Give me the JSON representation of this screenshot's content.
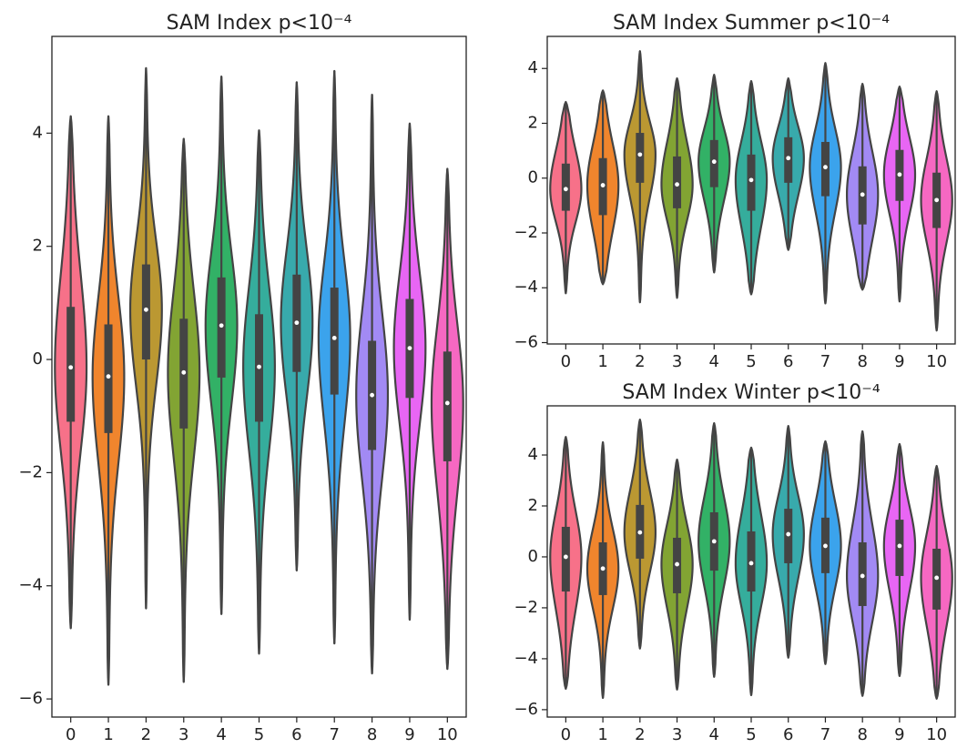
{
  "chart_data": [
    {
      "type": "violin",
      "title": "SAM Index p<10⁻⁴",
      "categories": [
        "0",
        "1",
        "2",
        "3",
        "4",
        "5",
        "6",
        "7",
        "8",
        "9",
        "10"
      ],
      "colors": [
        "#f77189",
        "#f0852d",
        "#bb9832",
        "#82a433",
        "#32b166",
        "#35ad9c",
        "#38aaac",
        "#3ba3ec",
        "#a28af4",
        "#e866f4",
        "#f668c2"
      ],
      "min": [
        -4.75,
        -5.75,
        -4.4,
        -5.7,
        -4.5,
        -5.2,
        -3.73,
        -5.02,
        -5.55,
        -4.6,
        -5.47
      ],
      "q1": [
        -1.1,
        -1.3,
        0.0,
        -1.22,
        -0.32,
        -1.1,
        -0.22,
        -0.62,
        -1.6,
        -0.68,
        -1.8
      ],
      "median": [
        -0.14,
        -0.3,
        0.88,
        -0.23,
        0.6,
        -0.13,
        0.65,
        0.38,
        -0.63,
        0.2,
        -0.77
      ],
      "q3": [
        0.93,
        0.62,
        1.68,
        0.72,
        1.45,
        0.8,
        1.5,
        1.27,
        0.33,
        1.07,
        0.14
      ],
      "max": [
        4.3,
        4.3,
        5.15,
        3.9,
        5.0,
        4.05,
        4.9,
        5.1,
        4.68,
        4.17,
        3.37
      ],
      "ylim": [
        -6.32,
        5.71
      ],
      "yticks": [
        {
          "value": -6,
          "label": "−6"
        },
        {
          "value": -4,
          "label": "−4"
        },
        {
          "value": -2,
          "label": "−2"
        },
        0,
        2,
        4
      ]
    },
    {
      "type": "violin",
      "title": "SAM Index Summer p<10⁻⁴",
      "categories": [
        "0",
        "1",
        "2",
        "3",
        "4",
        "5",
        "6",
        "7",
        "8",
        "9",
        "10"
      ],
      "colors": [
        "#f77189",
        "#f0852d",
        "#bb9832",
        "#82a433",
        "#32b166",
        "#35ad9c",
        "#38aaac",
        "#3ba3ec",
        "#a28af4",
        "#e866f4",
        "#f668c2"
      ],
      "min": [
        -4.2,
        -3.87,
        -4.53,
        -4.37,
        -3.44,
        -4.24,
        -2.62,
        -4.57,
        -4.07,
        -4.5,
        -5.56
      ],
      "q1": [
        -1.19,
        -1.35,
        -0.17,
        -1.1,
        -0.33,
        -1.19,
        -0.17,
        -0.66,
        -1.69,
        -0.83,
        -1.82
      ],
      "median": [
        -0.4,
        -0.26,
        0.86,
        -0.23,
        0.6,
        -0.07,
        0.73,
        0.4,
        -0.6,
        0.13,
        -0.8
      ],
      "q3": [
        0.53,
        0.73,
        1.65,
        0.79,
        1.39,
        0.86,
        1.49,
        1.32,
        0.43,
        1.03,
        0.2
      ],
      "max": [
        2.78,
        3.2,
        4.63,
        3.64,
        3.77,
        3.54,
        3.64,
        4.2,
        3.44,
        3.34,
        3.17
      ],
      "ylim": [
        -6.05,
        5.17
      ],
      "yticks": [
        {
          "value": -6,
          "label": "−6"
        },
        {
          "value": -4,
          "label": "−4"
        },
        {
          "value": -2,
          "label": "−2"
        },
        0,
        2,
        4
      ]
    },
    {
      "type": "violin",
      "title": "SAM Index Winter p<10⁻⁴",
      "categories": [
        "0",
        "1",
        "2",
        "3",
        "4",
        "5",
        "6",
        "7",
        "8",
        "9",
        "10"
      ],
      "colors": [
        "#f77189",
        "#f0852d",
        "#bb9832",
        "#82a433",
        "#32b166",
        "#35ad9c",
        "#38aaac",
        "#3ba3ec",
        "#a28af4",
        "#e866f4",
        "#f668c2"
      ],
      "min": [
        -5.18,
        -5.54,
        -3.6,
        -5.21,
        -4.71,
        -5.43,
        -3.96,
        -4.21,
        -5.46,
        -4.68,
        -5.57
      ],
      "q1": [
        -1.36,
        -1.5,
        -0.07,
        -1.43,
        -0.54,
        -1.36,
        -0.25,
        -0.64,
        -1.93,
        -0.75,
        -2.07
      ],
      "median": [
        0.0,
        -0.46,
        0.96,
        -0.29,
        0.61,
        -0.25,
        0.89,
        0.43,
        -0.75,
        0.43,
        -0.82
      ],
      "q3": [
        1.18,
        0.57,
        2.04,
        0.75,
        1.75,
        1.0,
        1.89,
        1.54,
        0.57,
        1.46,
        0.32
      ],
      "max": [
        4.71,
        4.5,
        5.39,
        3.82,
        5.25,
        4.29,
        5.14,
        4.54,
        4.93,
        4.43,
        3.57
      ],
      "ylim": [
        -6.29,
        5.93
      ],
      "yticks": [
        {
          "value": -6,
          "label": "−6"
        },
        {
          "value": -4,
          "label": "−4"
        },
        {
          "value": -2,
          "label": "−2"
        },
        0,
        2,
        4
      ]
    }
  ]
}
